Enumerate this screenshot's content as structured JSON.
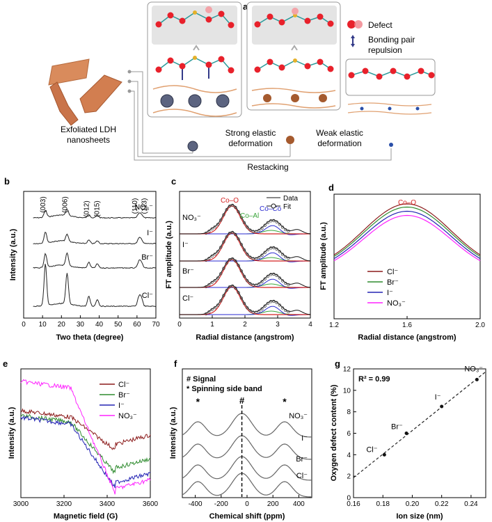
{
  "panel_a": {
    "letter": "a",
    "left_label_1": "Exfoliated LDH",
    "left_label_2": "nanosheets",
    "legend_defect": "Defect",
    "legend_bond_1": "Bonding pair",
    "legend_bond_2": "repulsion",
    "strong_1": "Strong elastic",
    "strong_2": "deformation",
    "weak_1": "Weak elastic",
    "weak_2": "deformation",
    "restacking": "Restacking"
  },
  "chart_data": [
    {
      "id": "b",
      "type": "line",
      "letter": "b",
      "xlabel": "Two theta (degree)",
      "ylabel": "Intensity (a.u.)",
      "xlim": [
        0,
        70
      ],
      "xticks": [
        "0",
        "10",
        "20",
        "30",
        "40",
        "50",
        "60",
        "70"
      ],
      "series": [
        {
          "name": "NO₃⁻",
          "offset": 3
        },
        {
          "name": "I⁻",
          "offset": 2
        },
        {
          "name": "Br⁻",
          "offset": 1
        },
        {
          "name": "Cl⁻",
          "offset": 0
        }
      ],
      "peak_positions": [
        11.5,
        23.0,
        34.5,
        39.0,
        61.0,
        62.3
      ],
      "annotations": [
        "(003)",
        "(006)",
        "(012)",
        "(015)",
        "(110)",
        "(113)"
      ]
    },
    {
      "id": "c",
      "type": "line",
      "letter": "c",
      "xlabel": "Radial distance (angstrom)",
      "ylabel": "FT amplitude (a.u.)",
      "xlim": [
        0,
        4
      ],
      "xticks": [
        "0",
        "1",
        "2",
        "3",
        "4"
      ],
      "series": [
        {
          "name": "NO₃⁻"
        },
        {
          "name": "I⁻"
        },
        {
          "name": "Br⁻"
        },
        {
          "name": "Cl⁻"
        }
      ],
      "legend": [
        "Data",
        "Fit"
      ],
      "annotations": [
        "Co–O",
        "Co–Al",
        "Co–Co"
      ]
    },
    {
      "id": "d",
      "type": "line",
      "letter": "d",
      "xlabel": "Radial distance (angstrom)",
      "ylabel": "FT amplitude (a.u.)",
      "xlim": [
        1.2,
        2.0
      ],
      "xticks": [
        "1.2",
        "1.6",
        "2.0"
      ],
      "peak_label": "Co–O",
      "series": [
        {
          "name": "Cl⁻",
          "color": "#8b1a1a",
          "peak": 1.0
        },
        {
          "name": "Br⁻",
          "color": "#2e8b2e",
          "peak": 0.97
        },
        {
          "name": "I⁻",
          "color": "#2323b4",
          "peak": 0.93
        },
        {
          "name": "NO₃⁻",
          "color": "#ff22ff",
          "peak": 0.89
        }
      ]
    },
    {
      "id": "e",
      "type": "line",
      "letter": "e",
      "xlabel": "Magnetic field (G)",
      "ylabel": "Intensity (a.u.)",
      "xlim": [
        3000,
        3600
      ],
      "xticks": [
        "3000",
        "3200",
        "3400",
        "3600"
      ],
      "series": [
        {
          "name": "Cl⁻",
          "color": "#8b1a1a"
        },
        {
          "name": "Br⁻",
          "color": "#2e8b2e"
        },
        {
          "name": "I⁻",
          "color": "#2323b4"
        },
        {
          "name": "NO₃⁻",
          "color": "#ff22ff"
        }
      ]
    },
    {
      "id": "f",
      "type": "line",
      "letter": "f",
      "xlabel": "Chemical shift (ppm)",
      "ylabel": "Intensity (a.u.)",
      "xlim": [
        -500,
        500
      ],
      "xticks": [
        "-400",
        "-200",
        "0",
        "200",
        "400"
      ],
      "legend": [
        "# Signal",
        "* Spinning side band"
      ],
      "series": [
        {
          "name": "NO₃⁻"
        },
        {
          "name": "I⁻"
        },
        {
          "name": "Br⁻"
        },
        {
          "name": "Cl⁻"
        }
      ],
      "marks": [
        "*",
        "#",
        "*"
      ]
    },
    {
      "id": "g",
      "type": "scatter",
      "letter": "g",
      "xlabel": "Ion size (nm)",
      "ylabel": "Oxygen defect content (%)",
      "xlim": [
        0.16,
        0.25
      ],
      "ylim": [
        0,
        12
      ],
      "xticks": [
        "0.16",
        "0.18",
        "0.20",
        "0.22",
        "0.24"
      ],
      "yticks": [
        "0",
        "2",
        "4",
        "6",
        "8",
        "10",
        "12"
      ],
      "annotation": "R² = 0.99",
      "points": [
        {
          "label": "Cl⁻",
          "x": 0.181,
          "y": 4.0
        },
        {
          "label": "Br⁻",
          "x": 0.196,
          "y": 6.0
        },
        {
          "label": "I⁻",
          "x": 0.22,
          "y": 8.5
        },
        {
          "label": "NO₃⁻",
          "x": 0.244,
          "y": 11.0
        }
      ]
    }
  ]
}
